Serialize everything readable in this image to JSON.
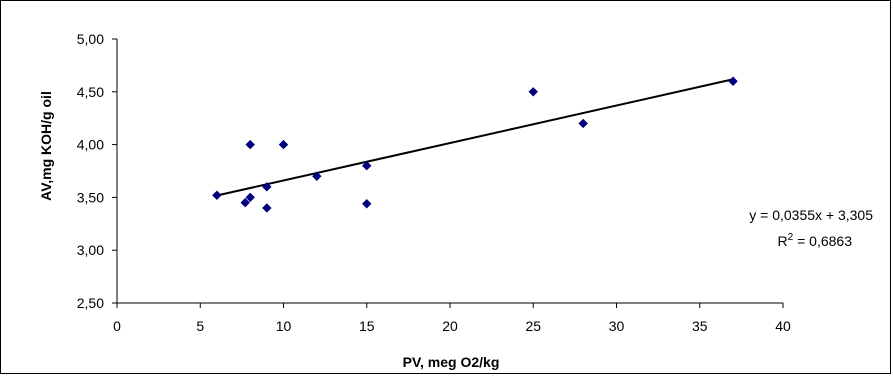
{
  "chart_data": {
    "type": "scatter",
    "xlabel": "PV, meg O2/kg",
    "ylabel": "AV,mg KOH/g oil",
    "xlim": [
      0,
      40
    ],
    "ylim": [
      2.5,
      5.0
    ],
    "x_ticks": [
      "0",
      "5",
      "10",
      "15",
      "20",
      "25",
      "30",
      "35",
      "40"
    ],
    "y_ticks": [
      "2,50",
      "3,00",
      "3,50",
      "4,00",
      "4,50",
      "5,00"
    ],
    "grid": false,
    "series": [
      {
        "marker": "diamond",
        "color": "#00007F",
        "points": [
          {
            "x": 6,
            "y": 3.52
          },
          {
            "x": 7.7,
            "y": 3.45
          },
          {
            "x": 8,
            "y": 3.5
          },
          {
            "x": 8,
            "y": 4.0
          },
          {
            "x": 9,
            "y": 3.6
          },
          {
            "x": 9,
            "y": 3.4
          },
          {
            "x": 10,
            "y": 4.0
          },
          {
            "x": 12,
            "y": 3.7
          },
          {
            "x": 15,
            "y": 3.8
          },
          {
            "x": 15,
            "y": 3.44
          },
          {
            "x": 25,
            "y": 4.5
          },
          {
            "x": 28,
            "y": 4.2
          },
          {
            "x": 37,
            "y": 4.6
          }
        ]
      }
    ],
    "trendline": {
      "type": "linear",
      "slope": 0.0355,
      "intercept": 3.305,
      "x_range": [
        6,
        37
      ],
      "color": "#000000",
      "equation": "y = 0,0355x + 3,305",
      "r2_prefix": "R",
      "r2_sup": "2",
      "r2_value": " = 0,6863"
    }
  }
}
